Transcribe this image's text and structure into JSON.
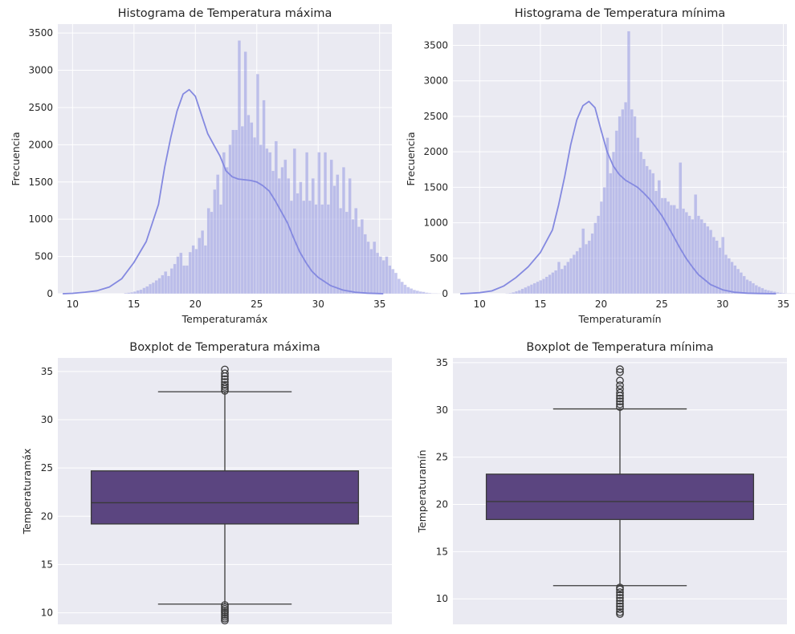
{
  "chart_data": [
    {
      "type": "bar",
      "subtype": "histogram",
      "title": "Histograma de Temperatura máxima",
      "xlabel": "Temperaturamáx",
      "ylabel": "Frecuencia",
      "xlim": [
        8.8,
        36.0
      ],
      "ylim": [
        0,
        3620
      ],
      "xticks": [
        10,
        15,
        20,
        25,
        30,
        35
      ],
      "yticks": [
        0,
        500,
        1000,
        1500,
        2000,
        2500,
        3000,
        3500
      ],
      "grid": true,
      "bar_color": "#8c8fe0",
      "kde_color": "#8489e0",
      "bin_start": 9.2,
      "bin_width": 0.25,
      "counts": [
        0,
        0,
        0,
        0,
        0,
        0,
        0,
        0,
        0,
        0,
        0,
        0,
        0,
        0,
        0,
        0,
        0,
        0,
        0,
        0,
        10,
        15,
        20,
        30,
        45,
        55,
        80,
        100,
        130,
        150,
        180,
        210,
        250,
        300,
        240,
        340,
        400,
        500,
        550,
        380,
        380,
        560,
        650,
        600,
        750,
        850,
        650,
        1150,
        1100,
        1400,
        1600,
        1200,
        1900,
        1700,
        2000,
        2200,
        2200,
        3400,
        2250,
        3250,
        2400,
        2300,
        2100,
        2950,
        2000,
        2600,
        1950,
        1900,
        1650,
        2050,
        1550,
        1700,
        1800,
        1550,
        1250,
        1950,
        1350,
        1500,
        1250,
        1900,
        1250,
        1550,
        1200,
        1900,
        1200,
        1900,
        1200,
        1800,
        1450,
        1600,
        1150,
        1700,
        1100,
        1550,
        1000,
        1150,
        900,
        1000,
        800,
        700,
        600,
        700,
        550,
        500,
        450,
        500,
        380,
        330,
        280,
        200,
        160,
        120,
        90,
        70,
        50,
        40,
        30,
        25,
        15,
        10,
        5,
        5,
        3
      ],
      "kde": [
        [
          9.2,
          0
        ],
        [
          10,
          5
        ],
        [
          11,
          20
        ],
        [
          12,
          40
        ],
        [
          13,
          90
        ],
        [
          14,
          200
        ],
        [
          15,
          420
        ],
        [
          16,
          700
        ],
        [
          17,
          1200
        ],
        [
          17.5,
          1700
        ],
        [
          18,
          2100
        ],
        [
          18.5,
          2450
        ],
        [
          19,
          2680
        ],
        [
          19.5,
          2740
        ],
        [
          20,
          2650
        ],
        [
          20.5,
          2400
        ],
        [
          21,
          2150
        ],
        [
          21.5,
          2000
        ],
        [
          22,
          1850
        ],
        [
          22.5,
          1650
        ],
        [
          23,
          1570
        ],
        [
          23.5,
          1540
        ],
        [
          24,
          1530
        ],
        [
          24.5,
          1520
        ],
        [
          25,
          1500
        ],
        [
          25.5,
          1450
        ],
        [
          26,
          1380
        ],
        [
          26.5,
          1250
        ],
        [
          27,
          1100
        ],
        [
          27.5,
          950
        ],
        [
          28,
          750
        ],
        [
          28.5,
          560
        ],
        [
          29,
          420
        ],
        [
          29.5,
          300
        ],
        [
          30,
          220
        ],
        [
          31,
          110
        ],
        [
          32,
          50
        ],
        [
          33,
          20
        ],
        [
          34,
          8
        ],
        [
          35,
          2
        ],
        [
          35.3,
          0
        ]
      ]
    },
    {
      "type": "bar",
      "subtype": "histogram",
      "title": "Histograma de Temperatura mínima",
      "xlabel": "Temperaturamín",
      "ylabel": "Frecuencia",
      "xlim": [
        7.8,
        35.3
      ],
      "ylim": [
        0,
        3800
      ],
      "xticks": [
        10,
        15,
        20,
        25,
        30,
        35
      ],
      "yticks": [
        0,
        500,
        1000,
        1500,
        2000,
        2500,
        3000,
        3500
      ],
      "grid": true,
      "bar_color": "#8c8fe0",
      "kde_color": "#8489e0",
      "bin_start": 8.4,
      "bin_width": 0.25,
      "counts": [
        0,
        0,
        0,
        0,
        0,
        0,
        0,
        0,
        0,
        0,
        0,
        0,
        0,
        0,
        0,
        5,
        10,
        20,
        35,
        50,
        70,
        90,
        110,
        130,
        150,
        170,
        190,
        210,
        240,
        270,
        300,
        330,
        450,
        350,
        400,
        450,
        500,
        550,
        600,
        650,
        920,
        700,
        750,
        850,
        1000,
        1100,
        1300,
        1500,
        2200,
        1700,
        2000,
        2300,
        2500,
        2600,
        2700,
        3700,
        2600,
        2500,
        2200,
        2000,
        1900,
        1800,
        1750,
        1700,
        1450,
        1600,
        1350,
        1350,
        1300,
        1250,
        1250,
        1200,
        1850,
        1200,
        1150,
        1100,
        1050,
        1400,
        1100,
        1050,
        1000,
        950,
        900,
        800,
        750,
        650,
        800,
        550,
        500,
        450,
        400,
        350,
        300,
        250,
        200,
        180,
        150,
        120,
        100,
        80,
        60,
        50,
        40,
        30,
        20,
        15,
        10,
        5,
        5,
        3,
        2,
        0,
        0,
        0,
        0,
        0,
        0
      ],
      "kde": [
        [
          8.4,
          0
        ],
        [
          9,
          5
        ],
        [
          10,
          15
        ],
        [
          11,
          40
        ],
        [
          12,
          110
        ],
        [
          13,
          230
        ],
        [
          14,
          380
        ],
        [
          15,
          580
        ],
        [
          16,
          900
        ],
        [
          16.5,
          1250
        ],
        [
          17,
          1650
        ],
        [
          17.5,
          2100
        ],
        [
          18,
          2450
        ],
        [
          18.5,
          2650
        ],
        [
          19,
          2710
        ],
        [
          19.5,
          2620
        ],
        [
          20,
          2300
        ],
        [
          20.5,
          2000
        ],
        [
          21,
          1800
        ],
        [
          21.5,
          1680
        ],
        [
          22,
          1600
        ],
        [
          22.5,
          1550
        ],
        [
          23,
          1500
        ],
        [
          23.5,
          1420
        ],
        [
          24,
          1330
        ],
        [
          24.5,
          1220
        ],
        [
          25,
          1100
        ],
        [
          25.5,
          950
        ],
        [
          26,
          800
        ],
        [
          26.5,
          640
        ],
        [
          27,
          500
        ],
        [
          27.5,
          380
        ],
        [
          28,
          270
        ],
        [
          29,
          130
        ],
        [
          30,
          55
        ],
        [
          31,
          20
        ],
        [
          32,
          8
        ],
        [
          33,
          3
        ],
        [
          34.4,
          0
        ]
      ]
    },
    {
      "type": "box",
      "title": "Boxplot de Temperatura máxima",
      "ylabel": "Temperaturamáx",
      "ylim": [
        8.8,
        36.4
      ],
      "yticks": [
        10,
        15,
        20,
        25,
        30,
        35
      ],
      "grid": true,
      "box_color": "#5b4580",
      "min": 10.9,
      "q1": 19.2,
      "median": 21.4,
      "q3": 24.7,
      "max": 32.9,
      "outliers": [
        9.2,
        9.4,
        9.6,
        9.8,
        10.0,
        10.2,
        10.4,
        10.6,
        10.8,
        33.0,
        33.2,
        33.4,
        33.6,
        33.9,
        34.2,
        34.5,
        34.8,
        35.2
      ]
    },
    {
      "type": "box",
      "title": "Boxplot de Temperatura mínima",
      "ylabel": "Temperaturamín",
      "ylim": [
        7.3,
        35.5
      ],
      "yticks": [
        10,
        15,
        20,
        25,
        30,
        35
      ],
      "grid": true,
      "box_color": "#5b4580",
      "min": 11.4,
      "q1": 18.4,
      "median": 20.3,
      "q3": 23.2,
      "max": 30.1,
      "outliers": [
        8.4,
        8.6,
        8.9,
        9.2,
        9.5,
        9.8,
        10.1,
        10.4,
        10.7,
        11.0,
        11.2,
        30.3,
        30.6,
        30.9,
        31.2,
        31.5,
        31.8,
        32.2,
        32.6,
        33.1,
        34.0,
        34.3
      ]
    }
  ]
}
